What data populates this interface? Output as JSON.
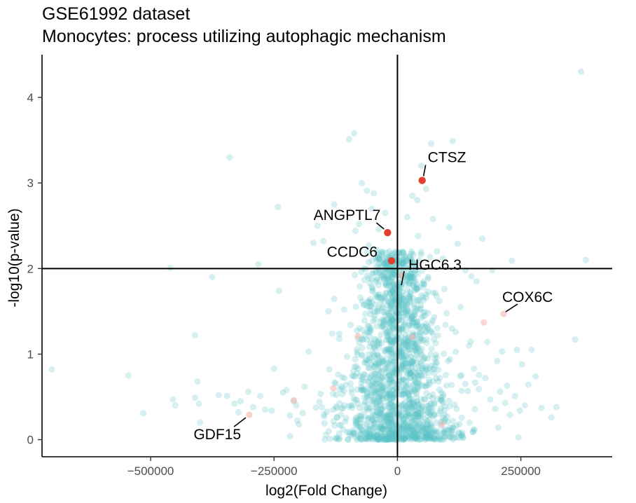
{
  "chart_data": {
    "type": "scatter",
    "title": "GSE61992 dataset",
    "subtitle": "Monocytes: process utilizing autophagic mechanism",
    "xlabel": "log2(Fold Change)",
    "ylabel": "-log10(p-value)",
    "x_ticks": [
      -500000,
      -250000,
      0,
      250000
    ],
    "x_tick_labels": [
      "−500000",
      "−250000",
      "0",
      "250000"
    ],
    "y_ticks": [
      0,
      1,
      2,
      3,
      4
    ],
    "y_tick_labels": [
      "0",
      "1",
      "2",
      "3",
      "4"
    ],
    "xlim": [
      -720000,
      435000
    ],
    "ylim": [
      -0.2,
      4.5
    ],
    "grid": false,
    "threshold_lines": {
      "x": 0,
      "y": 2
    },
    "colors": {
      "background_points": "#5bc4c8",
      "highlight_points": "#e04030",
      "faded_highlight_points": "#f4b4ac",
      "axis": "#000000"
    },
    "background_points": [
      [
        -700000,
        0.82
      ],
      [
        -545000,
        0.75
      ],
      [
        -515000,
        0.31
      ],
      [
        -460000,
        2.01
      ],
      [
        -455000,
        0.47
      ],
      [
        -450000,
        0.4
      ],
      [
        -410000,
        0.49
      ],
      [
        -405000,
        0.68
      ],
      [
        -410000,
        1.22
      ],
      [
        -400000,
        0.2
      ],
      [
        -375000,
        1.9
      ],
      [
        -345000,
        0.51
      ],
      [
        -340000,
        3.3
      ],
      [
        -330000,
        0.42
      ],
      [
        -322000,
        0.32
      ],
      [
        -318000,
        0.45
      ],
      [
        -292000,
        0.38
      ],
      [
        -282000,
        2.05
      ],
      [
        -268000,
        0.35
      ],
      [
        -255000,
        0.34
      ],
      [
        -250000,
        0.83
      ],
      [
        -242000,
        2.72
      ],
      [
        -240000,
        1.74
      ],
      [
        -225000,
        0.58
      ],
      [
        -210000,
        0.45
      ],
      [
        -205000,
        0.4
      ],
      [
        -200000,
        0.18
      ],
      [
        -192000,
        0.31
      ],
      [
        -180000,
        1.03
      ],
      [
        -170000,
        2.3
      ],
      [
        -162000,
        2.5
      ],
      [
        -150000,
        2.32
      ],
      [
        -140000,
        1.5
      ],
      [
        -128000,
        2.75
      ],
      [
        -120000,
        0.76
      ],
      [
        -108000,
        1.52
      ],
      [
        -98000,
        3.51
      ],
      [
        -88000,
        3.58
      ],
      [
        -78000,
        2.52
      ],
      [
        -72000,
        3.0
      ],
      [
        -62000,
        2.91
      ],
      [
        -52000,
        2.7
      ],
      [
        -42000,
        2.22
      ],
      [
        -32000,
        2.02
      ],
      [
        -22000,
        1.8
      ],
      [
        -25000,
        2.65
      ],
      [
        -12000,
        1.9
      ],
      [
        -5000,
        1.6
      ],
      [
        10000,
        1.52
      ],
      [
        20000,
        2.6
      ],
      [
        30000,
        2.85
      ],
      [
        40000,
        2.8
      ],
      [
        48000,
        3.2
      ],
      [
        58000,
        2.93
      ],
      [
        68000,
        3.46
      ],
      [
        80000,
        2.2
      ],
      [
        92000,
        2.12
      ],
      [
        112000,
        3.49
      ],
      [
        122000,
        2.29
      ],
      [
        138000,
        1.98
      ],
      [
        150000,
        1.91
      ],
      [
        160000,
        1.85
      ],
      [
        172000,
        2.35
      ],
      [
        182000,
        1.14
      ],
      [
        192000,
        1.98
      ],
      [
        202000,
        0.92
      ],
      [
        212000,
        1.03
      ],
      [
        222000,
        0.63
      ],
      [
        232000,
        2.09
      ],
      [
        242000,
        1.05
      ],
      [
        252000,
        0.88
      ],
      [
        258000,
        0.4
      ],
      [
        272000,
        1.05
      ],
      [
        280000,
        0.74
      ],
      [
        292000,
        0.37
      ],
      [
        312000,
        0.26
      ],
      [
        322000,
        0.38
      ],
      [
        360000,
        1.17
      ],
      [
        372000,
        4.3
      ],
      [
        382000,
        2.1
      ],
      [
        -402000,
        0.42
      ],
      [
        -362000,
        0.52
      ],
      [
        -302000,
        0.56
      ],
      [
        -278000,
        0.51
      ],
      [
        -232000,
        0.55
      ],
      [
        -218000,
        0.28
      ],
      [
        -188000,
        0.62
      ],
      [
        -158000,
        0.44
      ],
      [
        -148000,
        0.19
      ],
      [
        -138000,
        0.82
      ],
      [
        -132000,
        1.24
      ],
      [
        -118000,
        1.18
      ],
      [
        -112000,
        0.6
      ],
      [
        -102000,
        0.97
      ],
      [
        -95000,
        1.34
      ],
      [
        -85000,
        2.44
      ],
      [
        -75000,
        1.66
      ],
      [
        -65000,
        1.47
      ],
      [
        -58000,
        2.27
      ],
      [
        -48000,
        2.88
      ],
      [
        -38000,
        2.46
      ],
      [
        -28000,
        1.36
      ],
      [
        -18000,
        2.14
      ],
      [
        -8000,
        1.72
      ],
      [
        2000,
        0.98
      ],
      [
        8000,
        1.2
      ],
      [
        15000,
        1.81
      ],
      [
        25000,
        1.64
      ],
      [
        35000,
        2.04
      ],
      [
        42000,
        2.38
      ],
      [
        52000,
        1.44
      ],
      [
        62000,
        1.88
      ],
      [
        72000,
        2.58
      ],
      [
        85000,
        1.62
      ],
      [
        95000,
        1.76
      ],
      [
        105000,
        2.48
      ],
      [
        118000,
        1.26
      ],
      [
        128000,
        1.55
      ],
      [
        145000,
        1.1
      ],
      [
        155000,
        0.83
      ],
      [
        165000,
        0.59
      ],
      [
        178000,
        0.72
      ],
      [
        188000,
        0.47
      ],
      [
        198000,
        0.36
      ],
      [
        208000,
        0.56
      ],
      [
        218000,
        0.43
      ],
      [
        228000,
        0.29
      ],
      [
        238000,
        0.51
      ],
      [
        248000,
        0.34
      ],
      [
        265000,
        0.64
      ]
    ],
    "highlighted_genes": [
      {
        "label": "CTSZ",
        "x": 50000,
        "y": 3.03,
        "significant": true
      },
      {
        "label": "ANGPTL7",
        "x": -20000,
        "y": 2.42,
        "significant": true
      },
      {
        "label": "CCDC6",
        "x": -12000,
        "y": 2.09,
        "significant": true
      },
      {
        "label": "HGC6.3",
        "x": 8000,
        "y": 1.92,
        "significant": false
      },
      {
        "label": "COX6C",
        "x": 215000,
        "y": 1.47,
        "significant": false
      },
      {
        "label": "GDF15",
        "x": -300000,
        "y": 0.29,
        "significant": false
      }
    ],
    "faded_points": [
      [
        175000,
        1.37
      ],
      [
        -210000,
        0.46
      ],
      [
        90000,
        0.18
      ],
      [
        -80000,
        1.21
      ],
      [
        30000,
        1.2
      ],
      [
        -130000,
        0.6
      ]
    ]
  }
}
